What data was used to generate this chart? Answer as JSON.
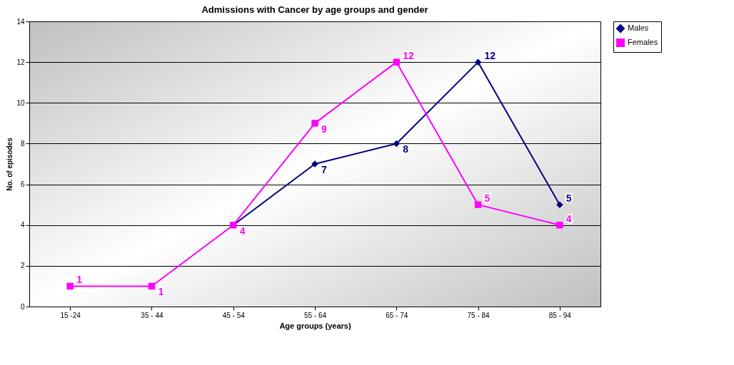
{
  "chart_data": {
    "type": "line",
    "title": "Admissions with Cancer by age groups and gender",
    "xlabel": "Age groups (years)",
    "ylabel": "No. of episodes",
    "categories": [
      "15 -24",
      "35 - 44",
      "45 - 54",
      "55 - 64",
      "65 - 74",
      "75 - 84",
      "85 - 94"
    ],
    "series": [
      {
        "name": "Males",
        "color": "#000080",
        "marker": "diamond",
        "values": [
          null,
          null,
          4,
          7,
          8,
          12,
          5
        ],
        "value_labels": [
          null,
          null,
          null,
          "7",
          "8",
          "12",
          "5"
        ]
      },
      {
        "name": "Females",
        "color": "#ff00ff",
        "marker": "square",
        "values": [
          1,
          1,
          4,
          9,
          12,
          5,
          4
        ],
        "value_labels": [
          "1",
          "1",
          "4",
          "9",
          "12",
          "5",
          "4"
        ]
      }
    ],
    "ylim": [
      0,
      14
    ],
    "yticks": [
      0,
      2,
      4,
      6,
      8,
      10,
      12,
      14
    ],
    "grid": "y",
    "legend": "right",
    "line_style": "solid"
  }
}
